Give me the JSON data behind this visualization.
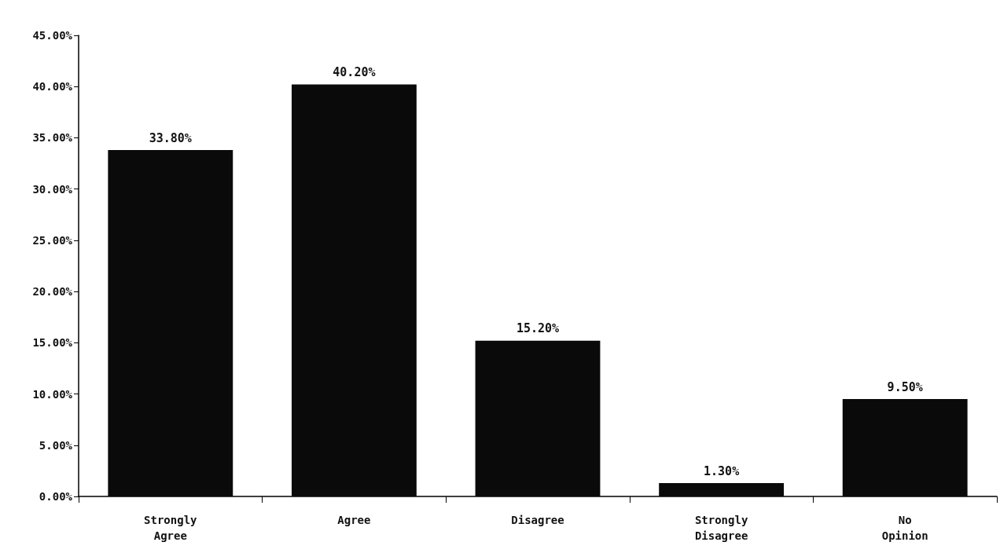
{
  "chart_data": {
    "type": "bar",
    "categories": [
      "Strongly Agree",
      "Agree",
      "Disagree",
      "Strongly Disagree",
      "No Opinion"
    ],
    "values": [
      33.8,
      40.2,
      15.2,
      1.3,
      9.5
    ],
    "value_labels": [
      "33.80%",
      "40.20%",
      "15.20%",
      "1.30%",
      "9.50%"
    ],
    "color": "#0a0a0a",
    "ylim": [
      0,
      45
    ],
    "yticks": [
      {
        "value": 0,
        "label": "0.00%"
      },
      {
        "value": 5,
        "label": "5.00%"
      },
      {
        "value": 10,
        "label": "10.00%"
      },
      {
        "value": 15,
        "label": "15.00%"
      },
      {
        "value": 20,
        "label": "20.00%"
      },
      {
        "value": 25,
        "label": "25.00%"
      },
      {
        "value": 30,
        "label": "30.00%"
      },
      {
        "value": 35,
        "label": "35.00%"
      },
      {
        "value": 40,
        "label": "40.00%"
      },
      {
        "value": 45,
        "label": "45.00%"
      }
    ],
    "grid": false
  }
}
